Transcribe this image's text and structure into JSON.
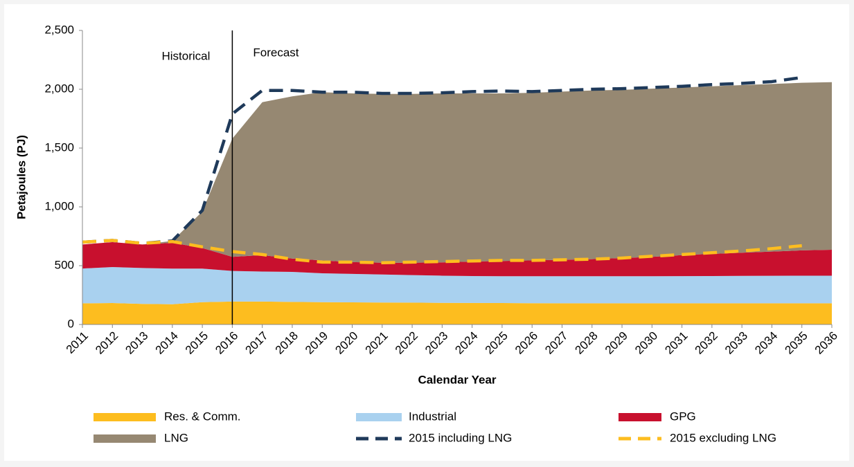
{
  "chart_data": {
    "type": "stacked_area",
    "y_label": "Petajoules (PJ)",
    "x_label": "Calendar Year",
    "annotations": [
      "Historical",
      "Forecast"
    ],
    "divider": "2016",
    "categories": [
      "2011",
      "2012",
      "2013",
      "2014",
      "2015",
      "2016",
      "2017",
      "2018",
      "2019",
      "2020",
      "2021",
      "2022",
      "2023",
      "2024",
      "2025",
      "2026",
      "2027",
      "2028",
      "2029",
      "2030",
      "2031",
      "2032",
      "2033",
      "2034",
      "2035",
      "2036"
    ],
    "ylim": [
      0,
      2500
    ],
    "yticks": [
      0,
      500,
      {
        "value": 1000,
        "label": "1,000"
      },
      {
        "value": 1500,
        "label": "1,500"
      },
      {
        "value": 2000,
        "label": "2,000"
      },
      {
        "value": 2500,
        "label": "2,500"
      }
    ],
    "series": [
      {
        "name": "Res. & Comm.",
        "color": "#fdbd1f",
        "values": [
          180,
          182,
          175,
          172,
          190,
          195,
          195,
          192,
          190,
          188,
          187,
          186,
          184,
          183,
          182,
          181,
          180,
          180,
          180,
          180,
          180,
          180,
          180,
          180,
          180,
          180
        ]
      },
      {
        "name": "Industrial",
        "color": "#a9d1ef",
        "values": [
          296,
          306,
          305,
          303,
          285,
          260,
          255,
          255,
          245,
          242,
          238,
          234,
          231,
          229,
          228,
          229,
          230,
          230,
          230,
          230,
          231,
          232,
          233,
          234,
          235,
          235
        ]
      },
      {
        "name": "GPG",
        "color": "#c8102e",
        "values": [
          204,
          212,
          200,
          220,
          175,
          120,
          140,
          113,
          110,
          100,
          100,
          105,
          113,
          123,
          130,
          135,
          140,
          145,
          155,
          165,
          179,
          188,
          197,
          206,
          215,
          220
        ]
      },
      {
        "name": "LNG",
        "color": "#968872",
        "values": [
          0,
          0,
          0,
          15,
          310,
          1005,
          1300,
          1380,
          1430,
          1435,
          1435,
          1435,
          1437,
          1430,
          1425,
          1425,
          1430,
          1435,
          1430,
          1430,
          1425,
          1425,
          1425,
          1425,
          1425,
          1425
        ]
      }
    ],
    "lines": [
      {
        "name": "2015 including LNG",
        "color": "#1f3a5a",
        "values": [
          700,
          715,
          690,
          710,
          970,
          1790,
          1990,
          1990,
          1975,
          1975,
          1965,
          1965,
          1970,
          1980,
          1985,
          1980,
          1990,
          2000,
          2005,
          2015,
          2025,
          2040,
          2050,
          2065,
          2100,
          null
        ]
      },
      {
        "name": "2015 excluding LNG",
        "color": "#fdbd1f",
        "values": [
          700,
          715,
          690,
          705,
          660,
          620,
          595,
          555,
          530,
          530,
          525,
          530,
          535,
          540,
          545,
          545,
          550,
          555,
          565,
          580,
          595,
          610,
          625,
          645,
          670,
          null
        ]
      }
    ]
  }
}
